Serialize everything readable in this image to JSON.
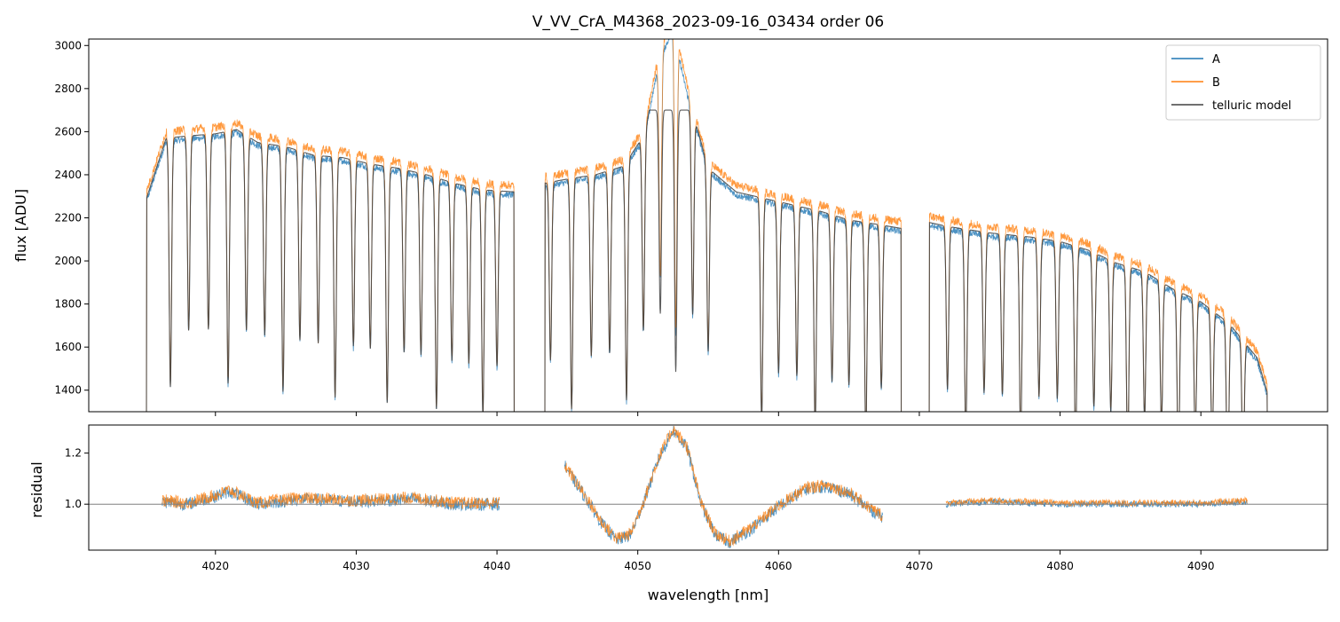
{
  "chart_data": [
    {
      "type": "line",
      "title": "V_VV_CrA_M4368_2023-09-16_03434  order 06",
      "xlabel": "",
      "ylabel": "flux [ADU]",
      "xlim": [
        4011,
        4099
      ],
      "ylim": [
        1300,
        3030
      ],
      "yticks": [
        1400,
        1600,
        1800,
        2000,
        2200,
        2400,
        2600,
        2800,
        3000
      ],
      "legend_position": "top-right",
      "segments": [
        [
          4015.0,
          4041.3
        ],
        [
          4043.3,
          4068.8
        ],
        [
          4070.6,
          4094.8
        ]
      ],
      "series": [
        {
          "name": "A",
          "color": "#1f77b4"
        },
        {
          "name": "B",
          "color": "#ff7f0e"
        },
        {
          "name": "telluric model",
          "color": "#404040"
        }
      ],
      "envelope": {
        "x": [
          4015.0,
          4016.5,
          4018,
          4020,
          4021.5,
          4023,
          4025,
          4027,
          4029,
          4031,
          4033,
          4035,
          4037,
          4039,
          4041.3,
          4043.3,
          4045,
          4047,
          4049,
          4050.5,
          4051.5,
          4052.5,
          4053.5,
          4055,
          4057,
          4059,
          4061,
          4063,
          4065,
          4067,
          4068.8,
          4070.6,
          4072,
          4075,
          4078,
          4080,
          4082,
          4084,
          4086,
          4088,
          4090,
          4092,
          4094,
          4094.8
        ],
        "values": [
          2280,
          2580,
          2590,
          2600,
          2620,
          2560,
          2540,
          2500,
          2490,
          2460,
          2440,
          2410,
          2370,
          2340,
          2330,
          2370,
          2390,
          2410,
          2450,
          2600,
          2950,
          3100,
          2800,
          2440,
          2330,
          2300,
          2270,
          2240,
          2200,
          2180,
          2160,
          2190,
          2170,
          2140,
          2120,
          2100,
          2060,
          2000,
          1960,
          1880,
          1820,
          1720,
          1560,
          1380
        ]
      },
      "telluric_absorption_lines": [
        4016.8,
        4018.1,
        4019.5,
        4020.9,
        4022.2,
        4023.5,
        4024.8,
        4026.0,
        4027.3,
        4028.5,
        4029.8,
        4031.0,
        4032.2,
        4033.4,
        4034.6,
        4035.7,
        4036.8,
        4038.0,
        4039.0,
        4040.0,
        4043.8,
        4045.3,
        4046.7,
        4048.0,
        4049.2,
        4050.4,
        4051.6,
        4052.7,
        4053.9,
        4055.0,
        4058.8,
        4060.0,
        4061.3,
        4062.6,
        4063.8,
        4065.0,
        4066.2,
        4067.3,
        4072.0,
        4073.3,
        4074.6,
        4075.9,
        4077.2,
        4078.5,
        4079.8,
        4081.1,
        4082.4,
        4083.6,
        4084.8,
        4086.0,
        4087.2,
        4088.4,
        4089.6,
        4090.8,
        4091.9,
        4093.0
      ]
    },
    {
      "type": "line",
      "title": "",
      "xlabel": "wavelength [nm]",
      "ylabel": "residual",
      "xlim": [
        4011,
        4099
      ],
      "ylim": [
        0.82,
        1.31
      ],
      "xticks": [
        4020,
        4030,
        4040,
        4050,
        4060,
        4070,
        4080,
        4090
      ],
      "yticks": [
        1.0,
        1.2
      ],
      "reference_line": 1.0,
      "segments": [
        [
          4016.2,
          4040.2
        ],
        [
          4044.8,
          4067.4
        ],
        [
          4071.9,
          4093.3
        ]
      ],
      "series": [
        {
          "name": "A",
          "color": "#1f77b4"
        },
        {
          "name": "B",
          "color": "#ff7f0e"
        }
      ],
      "trend": {
        "x": [
          4016.2,
          4018,
          4020,
          4021,
          4023,
          4026,
          4030,
          4034,
          4037,
          4040.2,
          4044.8,
          4046,
          4047.5,
          4048.5,
          4049.5,
          4050.5,
          4051.5,
          4052.5,
          4053.5,
          4054.5,
          4055.5,
          4056.5,
          4058,
          4060,
          4062,
          4063.5,
          4065,
          4066.5,
          4067.4,
          4071.9,
          4075,
          4080,
          4085,
          4090,
          4093.3
        ],
        "values": [
          1.01,
          1.0,
          1.03,
          1.05,
          1.0,
          1.02,
          1.01,
          1.02,
          1.0,
          1.0,
          1.15,
          1.05,
          0.92,
          0.86,
          0.88,
          1.02,
          1.18,
          1.29,
          1.22,
          1.0,
          0.88,
          0.85,
          0.9,
          0.99,
          1.06,
          1.07,
          1.04,
          0.98,
          0.95,
          1.0,
          1.01,
          1.0,
          1.0,
          1.0,
          1.01
        ]
      }
    }
  ]
}
